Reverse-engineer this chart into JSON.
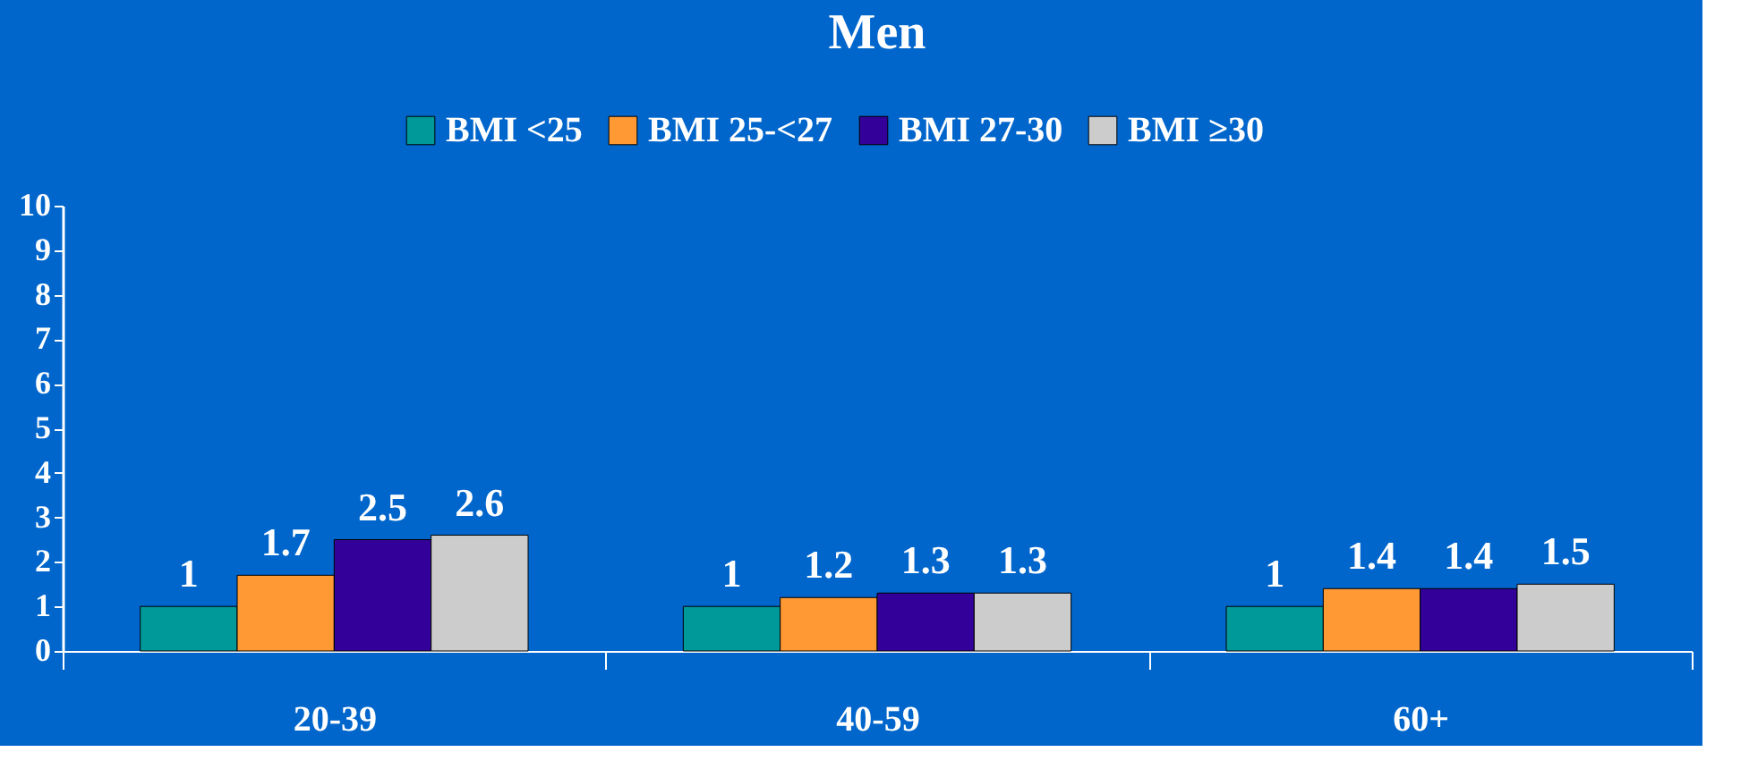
{
  "chart_data": {
    "type": "bar",
    "title": "Men",
    "categories": [
      "20-39",
      "40-59",
      "60+"
    ],
    "series": [
      {
        "name": "BMI <25",
        "color": "#009999",
        "values": [
          1,
          1,
          1
        ]
      },
      {
        "name": "BMI 25-<27",
        "color": "#ff9933",
        "values": [
          1.7,
          1.2,
          1.4
        ]
      },
      {
        "name": "BMI 27-30",
        "color": "#330099",
        "values": [
          2.5,
          1.3,
          1.4
        ]
      },
      {
        "name": "BMI ≥30",
        "color": "#cccccc",
        "values": [
          2.6,
          1.3,
          1.5
        ]
      }
    ],
    "ylim": [
      0,
      10
    ],
    "yticks": [
      0,
      1,
      2,
      3,
      4,
      5,
      6,
      7,
      8,
      9,
      10
    ],
    "grid": false,
    "legend": "top",
    "data_labels": true
  }
}
